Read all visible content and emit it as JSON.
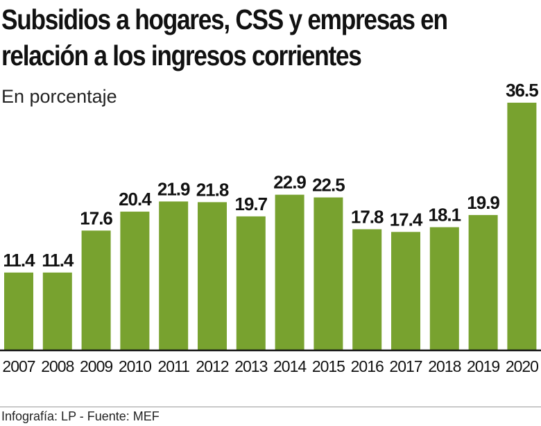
{
  "chart_data": {
    "type": "bar",
    "title": "Subsidios a hogares, CSS y empresas en relación a los ingresos corrientes",
    "subtitle": "En porcentaje",
    "categories": [
      "2007",
      "2008",
      "2009",
      "2010",
      "2011",
      "2012",
      "2013",
      "2014",
      "2015",
      "2016",
      "2017",
      "2018",
      "2019",
      "2020"
    ],
    "values": [
      11.4,
      11.4,
      17.6,
      20.4,
      21.9,
      21.8,
      19.7,
      22.9,
      22.5,
      17.8,
      17.4,
      18.1,
      19.9,
      36.5
    ],
    "value_labels": [
      "11.4",
      "11.4",
      "17.6",
      "20.4",
      "21.9",
      "21.8",
      "19.7",
      "22.9",
      "22.5",
      "17.8",
      "17.4",
      "18.1",
      "19.9",
      "36.5"
    ],
    "ylim": [
      0,
      36.5
    ],
    "grid": false,
    "colors": {
      "bar": "#78a22f",
      "axis": "#111111"
    }
  },
  "footer": "Infografía: LP - Fuente: MEF"
}
